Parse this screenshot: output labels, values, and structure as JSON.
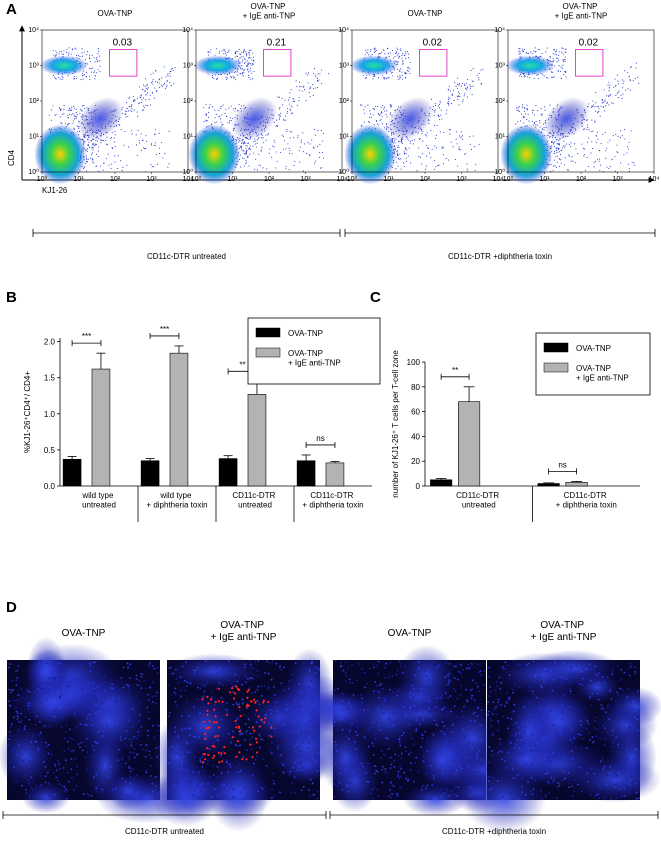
{
  "panel_labels": [
    "A",
    "B",
    "C",
    "D"
  ],
  "panel_a": {
    "plots": [
      {
        "title": "OVA-TNP",
        "gate_value": 0.03
      },
      {
        "title": "OVA-TNP\n+ IgE anti-TNP",
        "gate_value": 0.21
      },
      {
        "title": "OVA-TNP",
        "gate_value": 0.02
      },
      {
        "title": "OVA-TNP\n+ IgE anti-TNP",
        "gate_value": 0.02
      }
    ],
    "ticks": [
      {
        "value": 1,
        "label": "10⁰"
      },
      {
        "value": 10,
        "label": "10¹"
      },
      {
        "value": 100,
        "label": "10²"
      },
      {
        "value": 1000,
        "label": "10³"
      },
      {
        "value": 10000,
        "label": "10⁴"
      }
    ],
    "y_label": "CD4",
    "x_label": "KJ1-26",
    "groups": [
      "CD11c-DTR untreated",
      "CD11c-DTR +diphtheria toxin"
    ]
  },
  "chart_data": [
    {
      "type": "bar",
      "y_label": "%KJ1-26⁺CD4⁺/ CD4+",
      "categories": [
        "wild type\nuntreated",
        "wild type\n+ diphtheria toxin",
        "CD11c-DTR\nuntreated",
        "CD11c-DTR\n+ diphtheria toxin"
      ],
      "series": [
        {
          "name": "OVA-TNP",
          "color": "#000000",
          "values": [
            0.37,
            0.35,
            0.38,
            0.35
          ],
          "errors": [
            0.04,
            0.03,
            0.04,
            0.08
          ]
        },
        {
          "name": "OVA-TNP\n+ IgE anti-TNP",
          "color": "#b3b3b3",
          "values": [
            1.62,
            1.84,
            1.27,
            0.32
          ],
          "errors": [
            0.22,
            0.1,
            0.18,
            0.02
          ]
        }
      ],
      "ylim": [
        0,
        2.05
      ],
      "yticks": [
        {
          "value": 0,
          "label": "0.0"
        },
        0.5,
        {
          "value": 1,
          "label": "1.0"
        },
        1.5,
        {
          "value": 2,
          "label": "2.0"
        }
      ],
      "annotations": [
        "***",
        "***",
        "**",
        "ns"
      ],
      "legend": "upper right"
    },
    {
      "type": "bar",
      "y_label": "number of KJ1-26⁺ T cells per T-cell zone",
      "categories": [
        "CD11c-DTR\nuntreated",
        "CD11c-DTR\n+ diphtheria toxin"
      ],
      "series": [
        {
          "name": "OVA-TNP",
          "color": "#000000",
          "values": [
            5,
            2
          ],
          "errors": [
            1,
            0.5
          ]
        },
        {
          "name": "OVA-TNP\n+ IgE anti-TNP",
          "color": "#b3b3b3",
          "values": [
            68,
            3
          ],
          "errors": [
            12,
            0.7
          ]
        }
      ],
      "ylim": [
        0,
        100
      ],
      "yticks": [
        0,
        20,
        40,
        60,
        80,
        100
      ],
      "annotations": [
        "**",
        "ns"
      ],
      "legend": "upper right"
    }
  ],
  "panel_d": {
    "images": [
      {
        "title": "OVA-TNP"
      },
      {
        "title": "OVA-TNP\n+ IgE anti-TNP"
      },
      {
        "title": "OVA-TNP"
      },
      {
        "title": "OVA-TNP\n+ IgE anti-TNP"
      }
    ],
    "groups": [
      "CD11c-DTR untreated",
      "CD11c-DTR +diphtheria toxin"
    ]
  }
}
